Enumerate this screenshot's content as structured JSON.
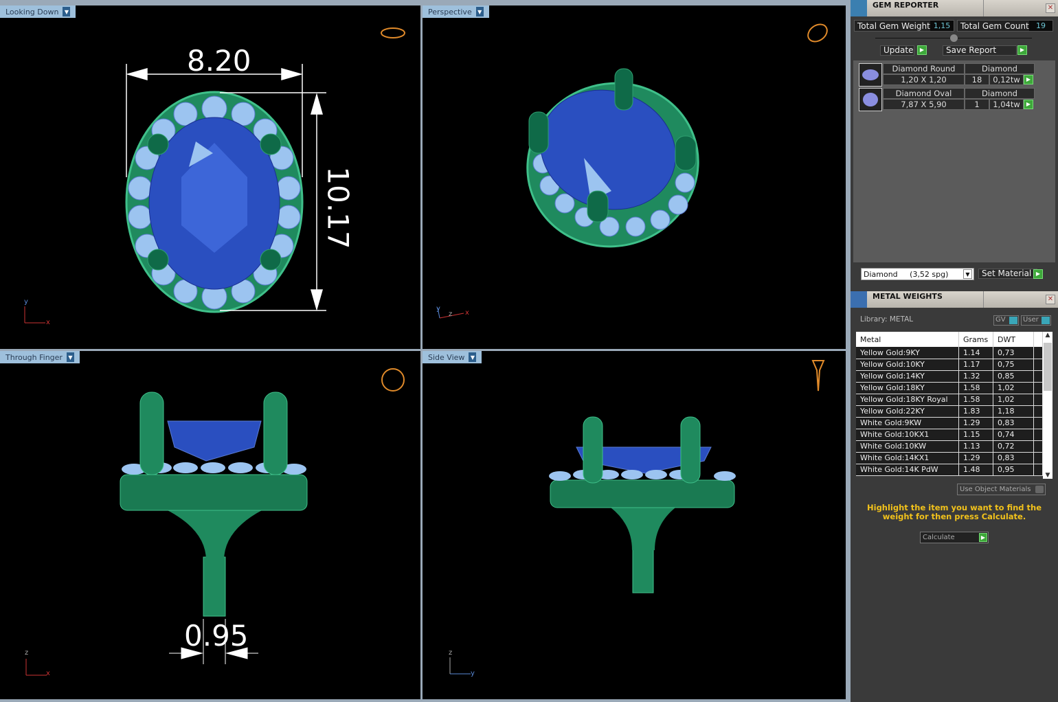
{
  "viewports": [
    {
      "label": "Looking Down",
      "dims": [
        "8.20",
        "10.17"
      ],
      "axes": [
        "y",
        "x"
      ]
    },
    {
      "label": "Perspective",
      "axes": [
        "y",
        "z",
        "x"
      ]
    },
    {
      "label": "Through Finger",
      "dims": [
        "0.95"
      ],
      "axes": [
        "z",
        "x"
      ]
    },
    {
      "label": "Side View",
      "axes": [
        "z",
        "y"
      ]
    }
  ],
  "gem_reporter": {
    "title": "GEM REPORTER",
    "total_weight_label": "Total Gem Weight",
    "total_weight": "1,15",
    "total_count_label": "Total Gem Count",
    "total_count": "19",
    "update_label": "Update",
    "save_label": "Save Report",
    "gems": [
      {
        "shape": "Diamond Round",
        "material": "Diamond",
        "size": "1,20 X 1,20",
        "count": "18",
        "weight": "0,12tw"
      },
      {
        "shape": "Diamond Oval",
        "material": "Diamond",
        "size": "7,87 X 5,90",
        "count": "1",
        "weight": "1,04tw"
      }
    ],
    "material_select": "Diamond     (3,52 spg)",
    "set_material_label": "Set Material"
  },
  "metal_weights": {
    "title": "METAL WEIGHTS",
    "library": "Library: METAL",
    "gv_label": "GV",
    "user_label": "User",
    "columns": [
      "Metal",
      "Grams",
      "DWT"
    ],
    "rows": [
      [
        "Yellow Gold:9KY",
        "1.14",
        "0,73"
      ],
      [
        "Yellow Gold:10KY",
        "1.17",
        "0,75"
      ],
      [
        "Yellow Gold:14KY",
        "1.32",
        "0,85"
      ],
      [
        "Yellow Gold:18KY",
        "1.58",
        "1,02"
      ],
      [
        "Yellow Gold:18KY Royal",
        "1.58",
        "1,02"
      ],
      [
        "Yellow Gold:22KY",
        "1.83",
        "1,18"
      ],
      [
        "White Gold:9KW",
        "1.29",
        "0,83"
      ],
      [
        "White Gold:10KX1",
        "1.15",
        "0,74"
      ],
      [
        "White Gold:10KW",
        "1.13",
        "0,72"
      ],
      [
        "White Gold:14KX1",
        "1.29",
        "0,83"
      ],
      [
        "White Gold:14K PdW",
        "1.48",
        "0,95"
      ]
    ],
    "use_object_label": "Use Object Materials",
    "hint": "Highlight the item you want to find the weight for then press Calculate.",
    "calculate_label": "Calculate",
    "hint_color": "#f2c21b"
  }
}
